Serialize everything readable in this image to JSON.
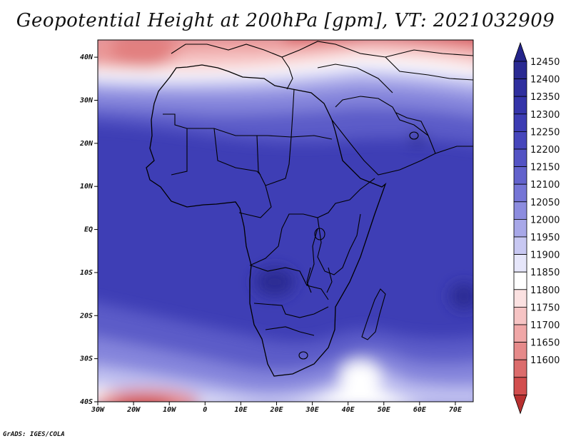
{
  "title": "Geopotential Height at 200hPa [gpm], VT: 2021032909",
  "footer": "GrADS: IGES/COLA",
  "map": {
    "lon_range": [
      -30,
      75
    ],
    "lat_range": [
      -40,
      44
    ],
    "x_ticks": [
      {
        "value": -30,
        "label": "30W"
      },
      {
        "value": -20,
        "label": "20W"
      },
      {
        "value": -10,
        "label": "10W"
      },
      {
        "value": 0,
        "label": "0"
      },
      {
        "value": 10,
        "label": "10E"
      },
      {
        "value": 20,
        "label": "20E"
      },
      {
        "value": 30,
        "label": "30E"
      },
      {
        "value": 40,
        "label": "40E"
      },
      {
        "value": 50,
        "label": "50E"
      },
      {
        "value": 60,
        "label": "60E"
      },
      {
        "value": 70,
        "label": "70E"
      }
    ],
    "y_ticks": [
      {
        "value": 40,
        "label": "40N"
      },
      {
        "value": 30,
        "label": "30N"
      },
      {
        "value": 20,
        "label": "20N"
      },
      {
        "value": 10,
        "label": "10N"
      },
      {
        "value": 0,
        "label": "EQ"
      },
      {
        "value": -10,
        "label": "10S"
      },
      {
        "value": -20,
        "label": "20S"
      },
      {
        "value": -30,
        "label": "30S"
      },
      {
        "value": -40,
        "label": "40S"
      }
    ]
  },
  "colorbar": {
    "levels": [
      {
        "label": "12450",
        "color": "#2a2a92"
      },
      {
        "label": "12400",
        "color": "#2f2f9e"
      },
      {
        "label": "12350",
        "color": "#3434a9"
      },
      {
        "label": "12300",
        "color": "#3c3cb3"
      },
      {
        "label": "12250",
        "color": "#4646bc"
      },
      {
        "label": "12200",
        "color": "#5353c4"
      },
      {
        "label": "12150",
        "color": "#6262cc"
      },
      {
        "label": "12100",
        "color": "#7575d6"
      },
      {
        "label": "12050",
        "color": "#8c8cdf"
      },
      {
        "label": "12000",
        "color": "#a8a8e8"
      },
      {
        "label": "11950",
        "color": "#c8c8f2"
      },
      {
        "label": "11900",
        "color": "#e6e6fa"
      },
      {
        "label": "11850",
        "color": "#ffffff"
      },
      {
        "label": "11800",
        "color": "#fbe1e1"
      },
      {
        "label": "11750",
        "color": "#f6c4c4"
      },
      {
        "label": "11700",
        "color": "#f0a7a7"
      },
      {
        "label": "11650",
        "color": "#e68a8a"
      },
      {
        "label": "11600",
        "color": "#dc6c6c"
      }
    ],
    "under_color": "#b83030",
    "mid_color": "#d24e4e",
    "over_color": "#24248a"
  }
}
